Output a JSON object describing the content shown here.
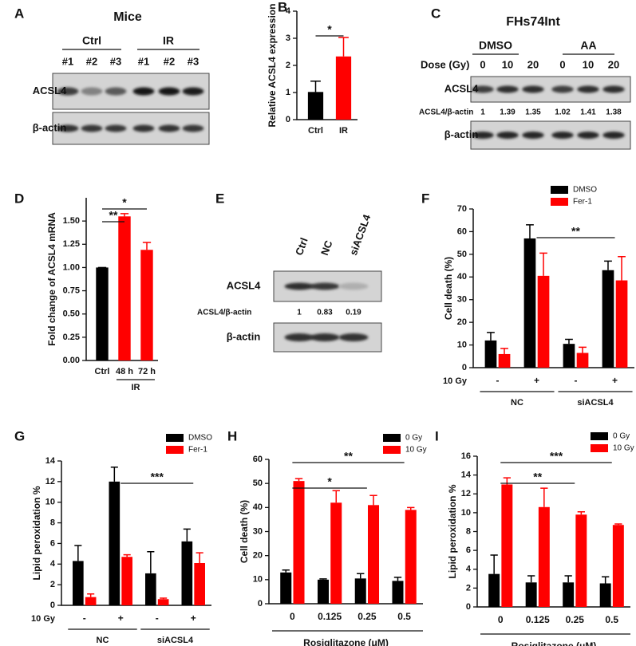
{
  "blots": [
    {
      "panel": "A",
      "title": "Mice",
      "groups": [
        "Ctrl",
        "IR"
      ],
      "lanes": [
        "#1",
        "#2",
        "#3",
        "#1",
        "#2",
        "#3"
      ],
      "rows": [
        "ACSL4",
        "β-actin"
      ]
    },
    {
      "panel": "C",
      "title": "FHs74Int",
      "groups": [
        "DMSO",
        "AA"
      ],
      "lane_header": "Dose (Gy)",
      "lanes": [
        "0",
        "10",
        "20",
        "0",
        "10",
        "20"
      ],
      "rows": [
        "ACSL4",
        "β-actin"
      ],
      "ratio_label": "ACSL4/β-actin",
      "ratios": [
        1,
        1.39,
        1.35,
        1.02,
        1.41,
        1.38
      ]
    },
    {
      "panel": "E",
      "lanes": [
        "Ctrl",
        "NC",
        "siACSL4"
      ],
      "rows": [
        "ACSL4",
        "β-actin"
      ],
      "ratio_label": "ACSL4/β-actin",
      "ratios": [
        1,
        0.83,
        0.19
      ]
    }
  ],
  "chart_data": [
    {
      "panel": "B",
      "type": "bar",
      "ylabel": "Relative ACSL4 expression",
      "categories": [
        "Ctrl",
        "IR"
      ],
      "values": [
        1.02,
        2.33
      ],
      "errors": [
        0.4,
        0.7
      ],
      "colors": [
        "#000000",
        "#ff0000"
      ],
      "ylim": [
        0,
        4
      ],
      "yticks": [
        0,
        1,
        2,
        3,
        4
      ],
      "annotations": [
        "*"
      ]
    },
    {
      "panel": "D",
      "type": "bar",
      "ylabel": "Fold change of ACSL4 mRNA",
      "categories": [
        "Ctrl",
        "48 h",
        "72 h"
      ],
      "group_label": "IR",
      "values": [
        1.0,
        1.55,
        1.19
      ],
      "errors": [
        0,
        0.03,
        0.08
      ],
      "colors": [
        "#000000",
        "#ff0000",
        "#ff0000"
      ],
      "ylim": [
        0,
        1.75
      ],
      "yticks": [
        {
          "value": 0,
          "label": "0.00"
        },
        {
          "value": 0.25,
          "label": "0.25"
        },
        {
          "value": 0.5,
          "label": "0.50"
        },
        {
          "value": 0.75,
          "label": "0.75"
        },
        {
          "value": 1,
          "label": "1.00"
        },
        {
          "value": 1.25,
          "label": "1.25"
        },
        {
          "value": 1.5,
          "label": "1.50"
        }
      ],
      "annotations": [
        "**",
        "*"
      ]
    },
    {
      "panel": "F",
      "type": "grouped_bar",
      "ylabel": "Cell death (%)",
      "row_label": "10 Gy",
      "categories": [
        "-",
        "+",
        "-",
        "+"
      ],
      "groups": [
        "NC",
        "siACSL4"
      ],
      "series": [
        {
          "name": "DMSO",
          "color": "#000000",
          "values": [
            12,
            57,
            10.5,
            43
          ],
          "errors": [
            3.5,
            6,
            2,
            4
          ]
        },
        {
          "name": "Fer-1",
          "color": "#ff0000",
          "values": [
            6,
            40.5,
            6.5,
            38.5
          ],
          "errors": [
            2.5,
            10,
            2.5,
            10.5
          ]
        }
      ],
      "ylim": [
        0,
        70
      ],
      "yticks": [
        0,
        10,
        20,
        30,
        40,
        50,
        60,
        70
      ],
      "annotations": [
        "**"
      ]
    },
    {
      "panel": "G",
      "type": "grouped_bar",
      "ylabel": "Lipid peroxidation %",
      "row_label": "10 Gy",
      "categories": [
        "-",
        "+",
        "-",
        "+"
      ],
      "groups": [
        "NC",
        "siACSL4"
      ],
      "series": [
        {
          "name": "DMSO",
          "color": "#000000",
          "values": [
            4.3,
            12,
            3.1,
            6.2
          ],
          "errors": [
            1.5,
            1.4,
            2.1,
            1.2
          ]
        },
        {
          "name": "Fer-1",
          "color": "#ff0000",
          "values": [
            0.8,
            4.7,
            0.6,
            4.1
          ],
          "errors": [
            0.3,
            0.2,
            0.1,
            1.0
          ]
        }
      ],
      "ylim": [
        0,
        14
      ],
      "yticks": [
        0,
        2,
        4,
        6,
        8,
        10,
        12,
        14
      ],
      "annotations": [
        "***"
      ]
    },
    {
      "panel": "H",
      "type": "grouped_bar",
      "ylabel": "Cell death (%)",
      "xlabel": "Rosiglitazone (μM)",
      "categories": [
        "0",
        "0.125",
        "0.25",
        "0.5"
      ],
      "series": [
        {
          "name": "0 Gy",
          "color": "#000000",
          "values": [
            13,
            10,
            10.5,
            9.5
          ],
          "errors": [
            1,
            0.3,
            2,
            1.5
          ]
        },
        {
          "name": "10 Gy",
          "color": "#ff0000",
          "values": [
            51,
            42,
            41,
            39
          ],
          "errors": [
            1,
            5,
            4,
            1
          ]
        }
      ],
      "ylim": [
        0,
        60
      ],
      "yticks": [
        0,
        10,
        20,
        30,
        40,
        50,
        60
      ],
      "annotations": [
        "*",
        "**"
      ]
    },
    {
      "panel": "I",
      "type": "grouped_bar",
      "ylabel": "Lipid peroxidation %",
      "xlabel": "Rosiglitazone (μM)",
      "categories": [
        "0",
        "0.125",
        "0.25",
        "0.5"
      ],
      "series": [
        {
          "name": "0 Gy",
          "color": "#000000",
          "values": [
            3.5,
            2.6,
            2.6,
            2.5
          ],
          "errors": [
            2,
            0.7,
            0.7,
            0.7
          ]
        },
        {
          "name": "10 Gy",
          "color": "#ff0000",
          "values": [
            13,
            10.6,
            9.8,
            8.7
          ],
          "errors": [
            0.7,
            2,
            0.3,
            0.1
          ]
        }
      ],
      "ylim": [
        0,
        16
      ],
      "yticks": [
        0,
        2,
        4,
        6,
        8,
        10,
        12,
        14,
        16
      ],
      "annotations": [
        "**",
        "***"
      ]
    }
  ]
}
